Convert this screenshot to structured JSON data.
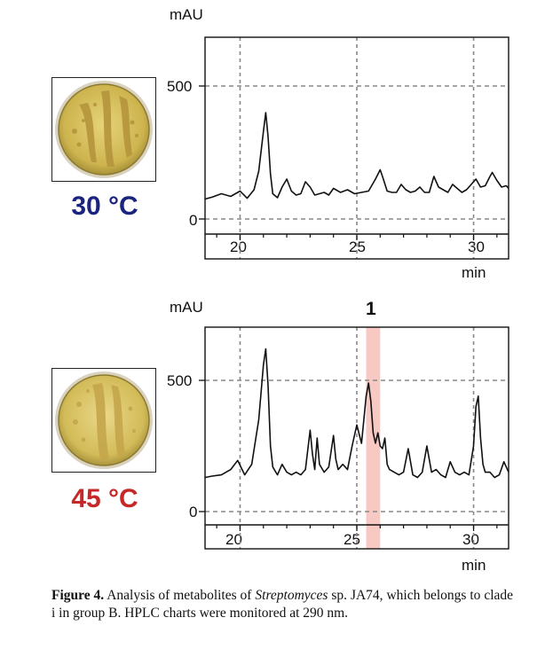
{
  "panels": [
    {
      "temperature": "30 °C",
      "temp_color": "#1a237e",
      "y_unit": "mAU",
      "x_unit": "min",
      "y_ticks": [
        "500",
        "0"
      ],
      "x_ticks": [
        "20",
        "25",
        "30"
      ],
      "peak_label": ""
    },
    {
      "temperature": "45 °C",
      "temp_color": "#c62828",
      "y_unit": "mAU",
      "x_unit": "min",
      "y_ticks": [
        "500",
        "0"
      ],
      "x_ticks": [
        "20",
        "25",
        "30"
      ],
      "peak_label": "1"
    }
  ],
  "chart_data": [
    {
      "type": "line",
      "xlabel": "min",
      "ylabel": "mAU",
      "xlim": [
        18.5,
        31.5
      ],
      "ylim": [
        -50,
        680
      ],
      "x_ticks": [
        20,
        25,
        30
      ],
      "y_ticks": [
        0,
        500
      ],
      "grid": true,
      "series": [
        {
          "x": [
            18.5,
            18.8,
            19.2,
            19.6,
            20.0,
            20.3,
            20.6,
            20.8,
            21.0,
            21.1,
            21.2,
            21.3,
            21.4,
            21.6,
            21.8,
            22.0,
            22.2,
            22.4,
            22.6,
            22.8,
            23.0,
            23.2,
            23.4,
            23.6,
            23.8,
            24.0,
            24.3,
            24.6,
            24.9,
            25.2,
            25.5,
            25.8,
            26.0,
            26.1,
            26.3,
            26.5,
            26.7,
            26.9,
            27.1,
            27.3,
            27.5,
            27.7,
            27.9,
            28.1,
            28.3,
            28.5,
            28.7,
            28.9,
            29.1,
            29.3,
            29.5,
            29.7,
            29.9,
            30.1,
            30.3,
            30.5,
            30.7,
            30.8,
            31.0,
            31.2,
            31.4,
            31.5
          ],
          "y": [
            75,
            82,
            95,
            85,
            105,
            78,
            110,
            180,
            330,
            400,
            310,
            170,
            95,
            80,
            120,
            150,
            105,
            90,
            95,
            140,
            120,
            90,
            95,
            100,
            90,
            115,
            100,
            110,
            95,
            100,
            105,
            150,
            185,
            160,
            105,
            100,
            100,
            130,
            110,
            100,
            105,
            120,
            100,
            100,
            160,
            120,
            110,
            100,
            130,
            115,
            100,
            110,
            130,
            150,
            120,
            125,
            160,
            175,
            145,
            120,
            125,
            115
          ]
        }
      ]
    },
    {
      "type": "line",
      "xlabel": "min",
      "ylabel": "mAU",
      "xlim": [
        18.5,
        31.5
      ],
      "ylim": [
        -50,
        690
      ],
      "x_ticks": [
        20,
        25,
        30
      ],
      "y_ticks": [
        0,
        500
      ],
      "grid": true,
      "highlight_x": [
        25.4,
        26.0
      ],
      "highlight_label": "1",
      "series": [
        {
          "x": [
            18.5,
            18.8,
            19.2,
            19.6,
            19.9,
            20.2,
            20.5,
            20.8,
            21.0,
            21.1,
            21.2,
            21.3,
            21.4,
            21.6,
            21.8,
            22.0,
            22.2,
            22.4,
            22.6,
            22.8,
            23.0,
            23.1,
            23.2,
            23.3,
            23.4,
            23.6,
            23.8,
            24.0,
            24.1,
            24.2,
            24.4,
            24.6,
            24.8,
            25.0,
            25.2,
            25.4,
            25.5,
            25.6,
            25.7,
            25.8,
            25.9,
            26.0,
            26.1,
            26.2,
            26.3,
            26.4,
            26.6,
            26.8,
            27.0,
            27.2,
            27.4,
            27.6,
            27.8,
            28.0,
            28.2,
            28.4,
            28.6,
            28.8,
            29.0,
            29.2,
            29.4,
            29.6,
            29.8,
            30.0,
            30.1,
            30.2,
            30.3,
            30.4,
            30.5,
            30.7,
            30.9,
            31.1,
            31.3,
            31.5
          ],
          "y": [
            130,
            135,
            140,
            160,
            195,
            140,
            180,
            350,
            560,
            620,
            480,
            250,
            170,
            140,
            180,
            150,
            140,
            150,
            140,
            160,
            310,
            220,
            160,
            280,
            180,
            150,
            170,
            290,
            200,
            160,
            180,
            160,
            250,
            330,
            260,
            440,
            490,
            420,
            300,
            260,
            300,
            250,
            240,
            280,
            180,
            160,
            150,
            140,
            150,
            240,
            140,
            130,
            150,
            250,
            150,
            160,
            140,
            130,
            190,
            150,
            140,
            150,
            140,
            250,
            400,
            440,
            280,
            180,
            150,
            150,
            130,
            140,
            190,
            150
          ]
        }
      ]
    }
  ],
  "caption": {
    "label": "Figure 4.",
    "text_before_italic": " Analysis of metabolites of ",
    "italic": "Streptomyces",
    "text_after_italic": " sp. JA74, which belongs to clade i in group B. HPLC charts were monitored at 290 nm."
  }
}
